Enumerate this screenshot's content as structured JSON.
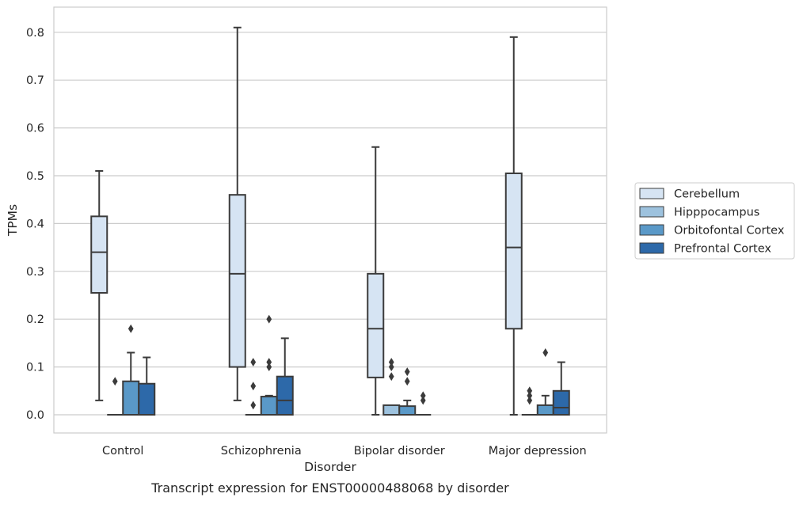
{
  "caption": "Transcript expression for ENST00000488068 by disorder",
  "chart_data": {
    "type": "box",
    "xlabel": "Disorder",
    "ylabel": "TPMs",
    "ylim": [
      -0.04,
      0.85
    ],
    "yticks": [
      0.0,
      0.1,
      0.2,
      0.3,
      0.4,
      0.5,
      0.6,
      0.7,
      0.8
    ],
    "ytick_labels": [
      "0.0",
      "0.1",
      "0.2",
      "0.3",
      "0.4",
      "0.5",
      "0.6",
      "0.7",
      "0.8"
    ],
    "grid": true,
    "legend_position": "right",
    "categories": [
      "Control",
      "Schizophrenia",
      "Bipolar disorder",
      "Major depression"
    ],
    "series": [
      {
        "name": "Cerebellum",
        "color": "#d6e4f3",
        "boxes": [
          {
            "whislo": 0.03,
            "q1": 0.255,
            "med": 0.34,
            "q3": 0.415,
            "whishi": 0.51,
            "fliers": []
          },
          {
            "whislo": 0.03,
            "q1": 0.1,
            "med": 0.295,
            "q3": 0.46,
            "whishi": 0.81,
            "fliers": []
          },
          {
            "whislo": 0.0,
            "q1": 0.078,
            "med": 0.18,
            "q3": 0.295,
            "whishi": 0.56,
            "fliers": []
          },
          {
            "whislo": 0.0,
            "q1": 0.18,
            "med": 0.35,
            "q3": 0.505,
            "whishi": 0.79,
            "fliers": []
          }
        ]
      },
      {
        "name": "Hipppocampus",
        "color": "#9dc2de",
        "boxes": [
          {
            "whislo": 0.0,
            "q1": 0.0,
            "med": 0.0,
            "q3": 0.0,
            "whishi": 0.0,
            "fliers": [
              0.07
            ]
          },
          {
            "whislo": 0.0,
            "q1": 0.0,
            "med": 0.0,
            "q3": 0.0,
            "whishi": 0.0,
            "fliers": [
              0.02,
              0.06,
              0.11
            ]
          },
          {
            "whislo": 0.0,
            "q1": 0.0,
            "med": 0.0,
            "q3": 0.02,
            "whishi": 0.02,
            "fliers": [
              0.08,
              0.1,
              0.11
            ]
          },
          {
            "whislo": 0.0,
            "q1": 0.0,
            "med": 0.0,
            "q3": 0.0,
            "whishi": 0.0,
            "fliers": [
              0.03,
              0.04,
              0.05
            ]
          }
        ]
      },
      {
        "name": "Orbitofontal Cortex",
        "color": "#5a99c8",
        "boxes": [
          {
            "whislo": 0.0,
            "q1": 0.0,
            "med": 0.0,
            "q3": 0.07,
            "whishi": 0.13,
            "fliers": [
              0.18
            ]
          },
          {
            "whislo": 0.0,
            "q1": 0.0,
            "med": 0.0,
            "q3": 0.038,
            "whishi": 0.04,
            "fliers": [
              0.1,
              0.11,
              0.2
            ]
          },
          {
            "whislo": 0.0,
            "q1": 0.0,
            "med": 0.0,
            "q3": 0.018,
            "whishi": 0.03,
            "fliers": [
              0.07,
              0.09
            ]
          },
          {
            "whislo": 0.0,
            "q1": 0.0,
            "med": 0.0,
            "q3": 0.02,
            "whishi": 0.04,
            "fliers": [
              0.13
            ]
          }
        ]
      },
      {
        "name": "Prefrontal Cortex",
        "color": "#2d69a9",
        "boxes": [
          {
            "whislo": 0.0,
            "q1": 0.0,
            "med": 0.0,
            "q3": 0.065,
            "whishi": 0.12,
            "fliers": []
          },
          {
            "whislo": 0.0,
            "q1": 0.0,
            "med": 0.03,
            "q3": 0.08,
            "whishi": 0.16,
            "fliers": []
          },
          {
            "whislo": 0.0,
            "q1": 0.0,
            "med": 0.0,
            "q3": 0.0,
            "whishi": 0.0,
            "fliers": [
              0.03,
              0.04
            ]
          },
          {
            "whislo": 0.0,
            "q1": 0.0,
            "med": 0.015,
            "q3": 0.05,
            "whishi": 0.11,
            "fliers": []
          }
        ]
      }
    ]
  }
}
